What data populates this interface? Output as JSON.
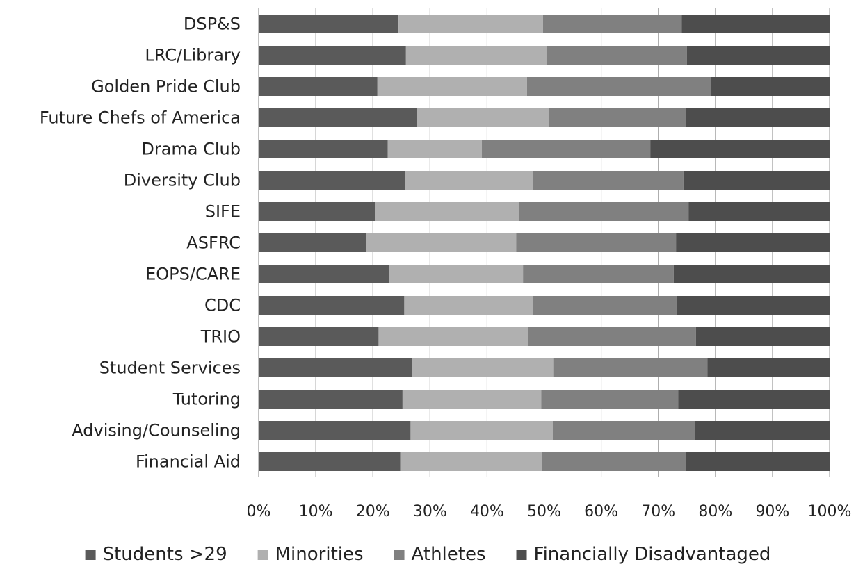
{
  "chart_data": {
    "type": "bar",
    "orientation": "horizontal",
    "stacked": "percent",
    "categories": [
      "DSP&S",
      "LRC/Library",
      "Golden Pride Club",
      "Future Chefs of America",
      "Drama Club",
      "Diversity Club",
      "SIFE",
      "ASFRC",
      "EOPS/CARE",
      "CDC",
      "TRIO",
      "Student Services",
      "Tutoring",
      "Advising/Counseling",
      "Financial Aid"
    ],
    "series": [
      {
        "name": "Students >29",
        "color": "#5a5a5a",
        "values": [
          24.5,
          25.8,
          20.8,
          27.8,
          22.6,
          25.6,
          20.4,
          18.8,
          22.9,
          25.5,
          21.0,
          26.8,
          25.2,
          26.6,
          24.8
        ]
      },
      {
        "name": "Minorities",
        "color": "#b0b0b0",
        "values": [
          25.3,
          24.6,
          26.2,
          23.0,
          16.5,
          22.5,
          25.2,
          26.3,
          23.4,
          22.5,
          26.2,
          24.8,
          24.3,
          24.9,
          24.8
        ]
      },
      {
        "name": "Athletes",
        "color": "#808080",
        "values": [
          24.3,
          24.6,
          32.2,
          24.1,
          29.5,
          26.3,
          29.7,
          28.0,
          26.4,
          25.2,
          29.4,
          27.0,
          24.0,
          24.9,
          25.2
        ]
      },
      {
        "name": "Financially Disadvantaged",
        "color": "#4d4d4d",
        "values": [
          25.9,
          25.0,
          20.8,
          25.1,
          31.4,
          25.6,
          24.7,
          26.9,
          27.3,
          26.8,
          23.4,
          21.4,
          26.5,
          23.6,
          25.2
        ]
      }
    ],
    "xticks": [
      "0%",
      "10%",
      "20%",
      "30%",
      "40%",
      "50%",
      "60%",
      "70%",
      "80%",
      "90%",
      "100%"
    ],
    "xlim": [
      0,
      100
    ],
    "grid": true,
    "legend_position": "bottom"
  }
}
